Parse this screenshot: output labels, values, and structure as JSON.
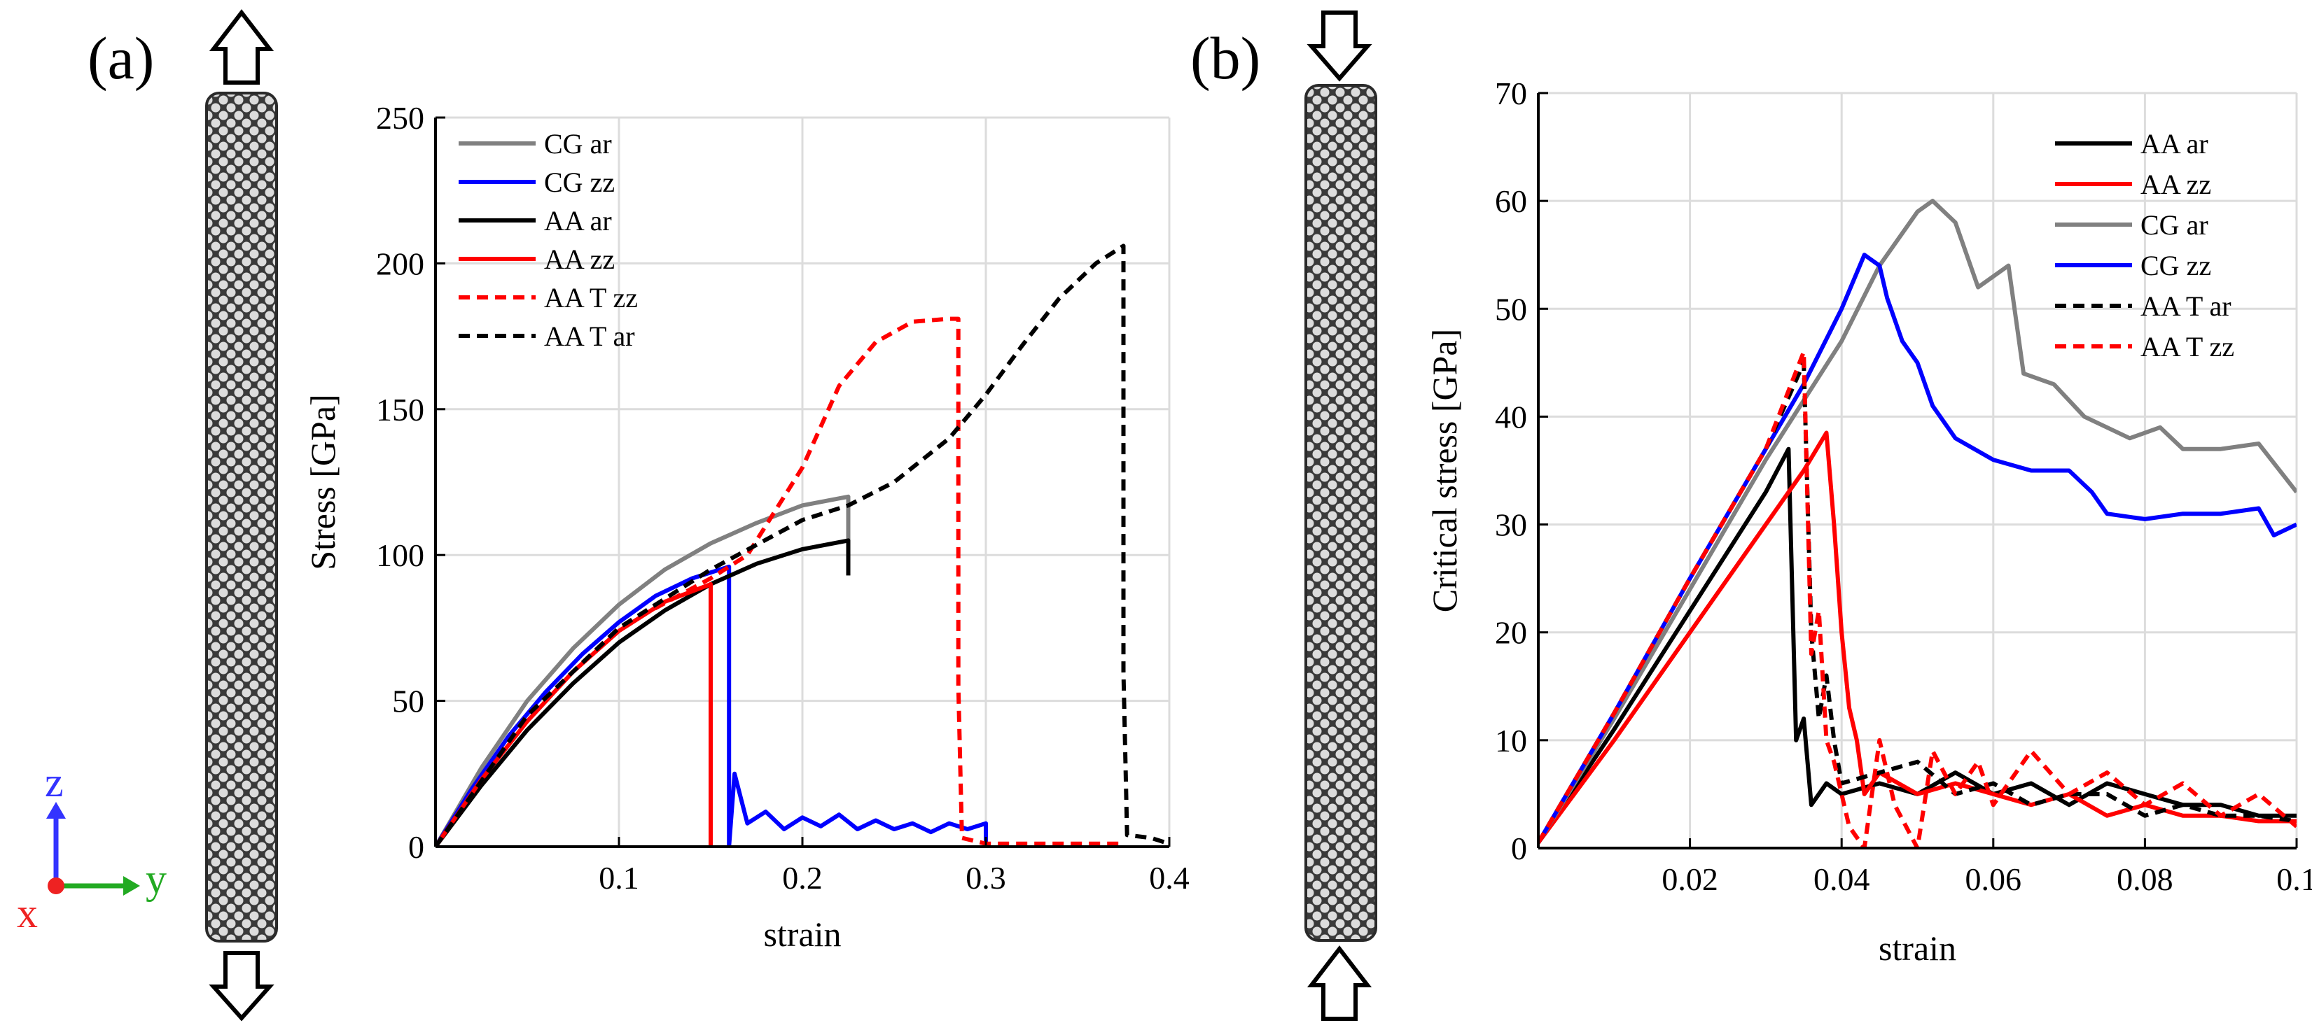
{
  "panel_labels": {
    "a": "(a)",
    "b": "(b)"
  },
  "axes_triad": {
    "z": "z",
    "y": "y",
    "x": "x",
    "colors": {
      "z": "#3333ff",
      "y": "#22aa22",
      "x": "#ee2222"
    }
  },
  "chart_data": [
    {
      "type": "line",
      "panel": "(a)",
      "xlabel": "strain",
      "ylabel": "Stress [GPa]",
      "xlim": [
        0,
        0.4
      ],
      "ylim": [
        0,
        250
      ],
      "xticks": [
        0.1,
        0.2,
        0.3,
        0.4
      ],
      "xtick_labels": [
        "0.1",
        "0.2",
        "0.3",
        "0.4"
      ],
      "yticks": [
        0,
        50,
        100,
        150,
        200,
        250
      ],
      "ytick_labels": [
        "0",
        "50",
        "100",
        "150",
        "200",
        "250"
      ],
      "grid": true,
      "legend": "top-left",
      "series": [
        {
          "name": "CG ar",
          "color": "#808080",
          "dash": "solid",
          "points": [
            [
              0,
              0
            ],
            [
              0.025,
              27
            ],
            [
              0.05,
              50
            ],
            [
              0.075,
              68
            ],
            [
              0.1,
              83
            ],
            [
              0.125,
              95
            ],
            [
              0.15,
              104
            ],
            [
              0.175,
              111
            ],
            [
              0.2,
              117
            ],
            [
              0.225,
              120
            ],
            [
              0.225,
              93
            ]
          ]
        },
        {
          "name": "CG zz",
          "color": "#0000ff",
          "dash": "solid",
          "points": [
            [
              0,
              0
            ],
            [
              0.02,
              20
            ],
            [
              0.04,
              38
            ],
            [
              0.06,
              53
            ],
            [
              0.08,
              66
            ],
            [
              0.1,
              77
            ],
            [
              0.12,
              86
            ],
            [
              0.14,
              92
            ],
            [
              0.16,
              96
            ],
            [
              0.16,
              0
            ],
            [
              0.163,
              25
            ],
            [
              0.17,
              8
            ],
            [
              0.18,
              12
            ],
            [
              0.19,
              6
            ],
            [
              0.2,
              10
            ],
            [
              0.21,
              7
            ],
            [
              0.22,
              11
            ],
            [
              0.23,
              6
            ],
            [
              0.24,
              9
            ],
            [
              0.25,
              6
            ],
            [
              0.26,
              8
            ],
            [
              0.27,
              5
            ],
            [
              0.28,
              8
            ],
            [
              0.29,
              6
            ],
            [
              0.3,
              8
            ],
            [
              0.3,
              0
            ]
          ]
        },
        {
          "name": "AA ar",
          "color": "#000000",
          "dash": "solid",
          "points": [
            [
              0,
              0
            ],
            [
              0.025,
              21
            ],
            [
              0.05,
              40
            ],
            [
              0.075,
              56
            ],
            [
              0.1,
              70
            ],
            [
              0.125,
              81
            ],
            [
              0.15,
              90
            ],
            [
              0.175,
              97
            ],
            [
              0.2,
              102
            ],
            [
              0.225,
              105
            ],
            [
              0.225,
              93
            ]
          ]
        },
        {
          "name": "AA zz",
          "color": "#ff0000",
          "dash": "solid",
          "points": [
            [
              0,
              0
            ],
            [
              0.025,
              23
            ],
            [
              0.05,
              43
            ],
            [
              0.075,
              60
            ],
            [
              0.1,
              74
            ],
            [
              0.125,
              84
            ],
            [
              0.15,
              90
            ],
            [
              0.15,
              0
            ]
          ]
        },
        {
          "name": "AA T zz",
          "color": "#ff0000",
          "dash": "dashed",
          "points": [
            [
              0,
              0
            ],
            [
              0.05,
              45
            ],
            [
              0.1,
              75
            ],
            [
              0.15,
              92
            ],
            [
              0.17,
              100
            ],
            [
              0.2,
              130
            ],
            [
              0.22,
              158
            ],
            [
              0.24,
              173
            ],
            [
              0.26,
              180
            ],
            [
              0.28,
              181
            ],
            [
              0.285,
              181
            ],
            [
              0.285,
              55
            ],
            [
              0.287,
              3
            ],
            [
              0.3,
              1
            ],
            [
              0.35,
              1
            ],
            [
              0.375,
              1
            ]
          ]
        },
        {
          "name": "AA T ar",
          "color": "#000000",
          "dash": "dashed",
          "points": [
            [
              0,
              0
            ],
            [
              0.05,
              45
            ],
            [
              0.1,
              75
            ],
            [
              0.15,
              95
            ],
            [
              0.2,
              112
            ],
            [
              0.225,
              117
            ],
            [
              0.25,
              125
            ],
            [
              0.28,
              140
            ],
            [
              0.3,
              155
            ],
            [
              0.32,
              172
            ],
            [
              0.34,
              188
            ],
            [
              0.36,
              200
            ],
            [
              0.375,
              206
            ],
            [
              0.375,
              60
            ],
            [
              0.377,
              4
            ],
            [
              0.39,
              3
            ],
            [
              0.4,
              1
            ]
          ]
        }
      ]
    },
    {
      "type": "line",
      "panel": "(b)",
      "xlabel": "strain",
      "ylabel": "Critical stress [GPa]",
      "xlim": [
        0,
        0.1
      ],
      "ylim": [
        0,
        70
      ],
      "xticks": [
        0.02,
        0.04,
        0.06,
        0.08,
        0.1
      ],
      "xtick_labels": [
        "0.02",
        "0.04",
        "0.06",
        "0.08",
        "0.1"
      ],
      "yticks": [
        0,
        10,
        20,
        30,
        40,
        50,
        60,
        70
      ],
      "ytick_labels": [
        "0",
        "10",
        "20",
        "30",
        "40",
        "50",
        "60",
        "70"
      ],
      "grid": true,
      "legend": "top-right",
      "series": [
        {
          "name": "AA ar",
          "color": "#000000",
          "dash": "solid",
          "points": [
            [
              0,
              0.5
            ],
            [
              0.01,
              11
            ],
            [
              0.02,
              22
            ],
            [
              0.03,
              33
            ],
            [
              0.033,
              37
            ],
            [
              0.034,
              10
            ],
            [
              0.035,
              12
            ],
            [
              0.036,
              4
            ],
            [
              0.038,
              6
            ],
            [
              0.04,
              5
            ],
            [
              0.045,
              6
            ],
            [
              0.05,
              5
            ],
            [
              0.055,
              7
            ],
            [
              0.06,
              5
            ],
            [
              0.065,
              6
            ],
            [
              0.07,
              4
            ],
            [
              0.075,
              6
            ],
            [
              0.08,
              5
            ],
            [
              0.085,
              4
            ],
            [
              0.09,
              4
            ],
            [
              0.095,
              3
            ],
            [
              0.1,
              3
            ]
          ]
        },
        {
          "name": "AA zz",
          "color": "#ff0000",
          "dash": "solid",
          "points": [
            [
              0,
              0.5
            ],
            [
              0.01,
              10
            ],
            [
              0.02,
              20
            ],
            [
              0.03,
              30
            ],
            [
              0.035,
              35
            ],
            [
              0.038,
              38.5
            ],
            [
              0.039,
              30
            ],
            [
              0.04,
              20
            ],
            [
              0.041,
              13
            ],
            [
              0.042,
              10
            ],
            [
              0.043,
              5
            ],
            [
              0.045,
              7
            ],
            [
              0.05,
              5
            ],
            [
              0.055,
              6
            ],
            [
              0.06,
              5
            ],
            [
              0.065,
              4
            ],
            [
              0.07,
              5
            ],
            [
              0.075,
              3
            ],
            [
              0.08,
              4
            ],
            [
              0.085,
              3
            ],
            [
              0.09,
              3
            ],
            [
              0.095,
              2.5
            ],
            [
              0.1,
              2.5
            ]
          ]
        },
        {
          "name": "CG ar",
          "color": "#808080",
          "dash": "solid",
          "points": [
            [
              0,
              0.5
            ],
            [
              0.01,
              12
            ],
            [
              0.02,
              24
            ],
            [
              0.03,
              36
            ],
            [
              0.04,
              47
            ],
            [
              0.045,
              54
            ],
            [
              0.05,
              59
            ],
            [
              0.052,
              60
            ],
            [
              0.055,
              58
            ],
            [
              0.058,
              52
            ],
            [
              0.062,
              54
            ],
            [
              0.064,
              44
            ],
            [
              0.068,
              43
            ],
            [
              0.072,
              40
            ],
            [
              0.078,
              38
            ],
            [
              0.082,
              39
            ],
            [
              0.085,
              37
            ],
            [
              0.09,
              37
            ],
            [
              0.095,
              37.5
            ],
            [
              0.1,
              33
            ]
          ]
        },
        {
          "name": "CG zz",
          "color": "#0000ff",
          "dash": "solid",
          "points": [
            [
              0,
              0.5
            ],
            [
              0.01,
              12.5
            ],
            [
              0.02,
              25
            ],
            [
              0.03,
              37
            ],
            [
              0.035,
              43
            ],
            [
              0.04,
              50
            ],
            [
              0.043,
              55
            ],
            [
              0.045,
              54
            ],
            [
              0.046,
              51
            ],
            [
              0.048,
              47
            ],
            [
              0.05,
              45
            ],
            [
              0.052,
              41
            ],
            [
              0.055,
              38
            ],
            [
              0.06,
              36
            ],
            [
              0.065,
              35
            ],
            [
              0.07,
              35
            ],
            [
              0.073,
              33
            ],
            [
              0.075,
              31
            ],
            [
              0.08,
              30.5
            ],
            [
              0.085,
              31
            ],
            [
              0.09,
              31
            ],
            [
              0.095,
              31.5
            ],
            [
              0.097,
              29
            ],
            [
              0.1,
              30
            ]
          ]
        },
        {
          "name": "AA T ar",
          "color": "#000000",
          "dash": "dashed",
          "points": [
            [
              0,
              0.5
            ],
            [
              0.01,
              12.5
            ],
            [
              0.02,
              25
            ],
            [
              0.03,
              37
            ],
            [
              0.035,
              45
            ],
            [
              0.036,
              20
            ],
            [
              0.037,
              12
            ],
            [
              0.038,
              16
            ],
            [
              0.039,
              10
            ],
            [
              0.04,
              6
            ],
            [
              0.045,
              7
            ],
            [
              0.05,
              8
            ],
            [
              0.055,
              5
            ],
            [
              0.06,
              6
            ],
            [
              0.065,
              4
            ],
            [
              0.07,
              5
            ],
            [
              0.075,
              5
            ],
            [
              0.08,
              3
            ],
            [
              0.085,
              4
            ],
            [
              0.09,
              3
            ],
            [
              0.095,
              3
            ],
            [
              0.1,
              2.5
            ]
          ]
        },
        {
          "name": "AA T zz",
          "color": "#ff0000",
          "dash": "dashed",
          "points": [
            [
              0,
              0.5
            ],
            [
              0.01,
              12.5
            ],
            [
              0.02,
              25
            ],
            [
              0.03,
              37
            ],
            [
              0.035,
              46
            ],
            [
              0.036,
              18
            ],
            [
              0.037,
              22
            ],
            [
              0.038,
              10
            ],
            [
              0.039,
              8
            ],
            [
              0.041,
              2
            ],
            [
              0.043,
              0
            ],
            [
              0.045,
              10
            ],
            [
              0.047,
              4
            ],
            [
              0.05,
              0
            ],
            [
              0.052,
              9
            ],
            [
              0.055,
              5
            ],
            [
              0.058,
              8
            ],
            [
              0.06,
              4
            ],
            [
              0.065,
              9
            ],
            [
              0.07,
              5
            ],
            [
              0.075,
              7
            ],
            [
              0.08,
              4
            ],
            [
              0.085,
              6
            ],
            [
              0.09,
              3
            ],
            [
              0.095,
              5
            ],
            [
              0.1,
              2
            ]
          ]
        }
      ]
    }
  ]
}
